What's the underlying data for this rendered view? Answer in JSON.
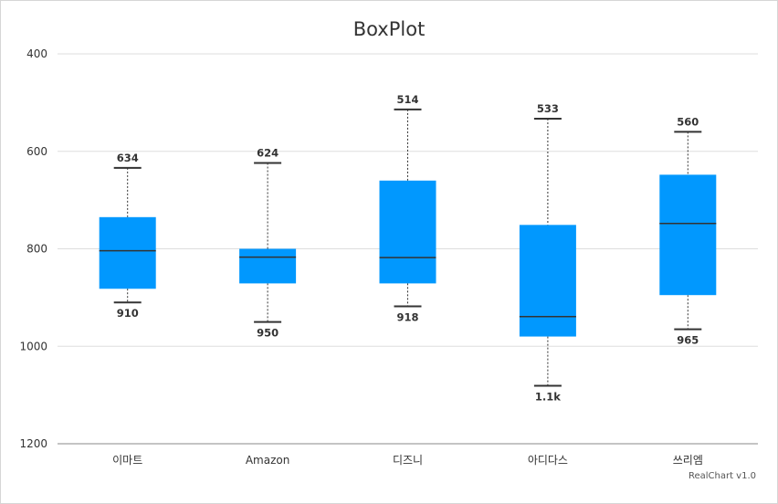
{
  "chart_data": {
    "type": "boxplot",
    "title": "BoxPlot",
    "credit": "RealChart v1.0",
    "y_axis": {
      "reversed": true,
      "min": 400,
      "max": 1200,
      "ticks": [
        "400",
        "600",
        "800",
        "1000",
        "1200"
      ]
    },
    "categories": [
      "이마트",
      "Amazon",
      "디즈니",
      "아디다스",
      "쓰리엠"
    ],
    "boxes": [
      {
        "low": 634,
        "q1": 735,
        "median": 804,
        "q3": 882,
        "high": 910,
        "low_label": "634",
        "high_label": "910"
      },
      {
        "low": 624,
        "q1": 800,
        "median": 817,
        "q3": 871,
        "high": 950,
        "low_label": "624",
        "high_label": "950"
      },
      {
        "low": 514,
        "q1": 660,
        "median": 818,
        "q3": 871,
        "high": 918,
        "low_label": "514",
        "high_label": "918"
      },
      {
        "low": 533,
        "q1": 751,
        "median": 939,
        "q3": 980,
        "high": 1081,
        "low_label": "533",
        "high_label": "1.1k"
      },
      {
        "low": 560,
        "q1": 648,
        "median": 748,
        "q3": 895,
        "high": 965,
        "low_label": "560",
        "high_label": "965"
      }
    ],
    "colors": {
      "box": "#0198fe",
      "line": "#333333",
      "grid": "#dddddd"
    }
  }
}
